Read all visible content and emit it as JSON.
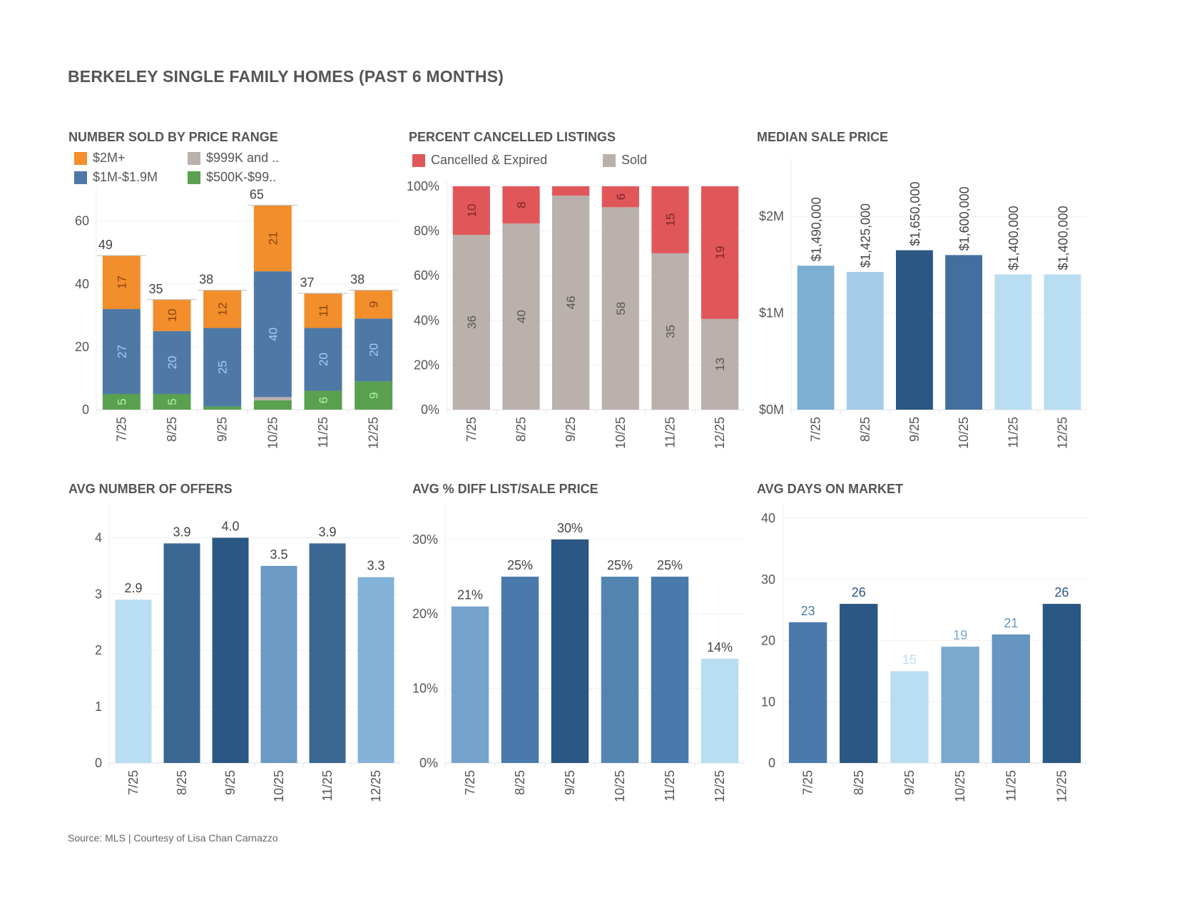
{
  "title": "BERKELEY SINGLE FAMILY HOMES (PAST 6 MONTHS)",
  "footer": "Source: MLS | Courtesy of Lisa Chan Carnazzo",
  "chart_data": [
    {
      "type": "bar",
      "stacked": true,
      "title": "NUMBER SOLD BY PRICE RANGE",
      "categories": [
        "7/25",
        "8/25",
        "9/25",
        "10/25",
        "11/25",
        "12/25"
      ],
      "series": [
        {
          "name": "$500K-$99..",
          "color": "#59A14F",
          "label_color": "#B5F0A8",
          "values": [
            5,
            5,
            1,
            3,
            6,
            9
          ]
        },
        {
          "name": "$999K and ..",
          "color": "#BAB0AC",
          "label_color": "#555555",
          "values": [
            0,
            0,
            0,
            1,
            0,
            0
          ]
        },
        {
          "name": "$1M-$1.9M",
          "color": "#4E79A7",
          "label_color": "#A3CFF5",
          "values": [
            27,
            20,
            25,
            40,
            20,
            20
          ]
        },
        {
          "name": "$2M+",
          "color": "#F28E2B",
          "label_color": "#8A4410",
          "values": [
            17,
            10,
            12,
            21,
            11,
            9
          ]
        }
      ],
      "legend_order": [
        "$2M+",
        "$999K and ..",
        "$1M-$1.9M",
        "$500K-$99.."
      ],
      "totals": [
        49,
        35,
        38,
        65,
        37,
        38
      ],
      "y_ticks": [
        0,
        20,
        40,
        60
      ],
      "y_tick_labels": [
        "0",
        "20",
        "40",
        "60"
      ],
      "ylim": [
        0,
        69
      ],
      "legend": "top-left",
      "grid": true
    },
    {
      "type": "bar",
      "stacked": true,
      "percent": true,
      "title": "PERCENT CANCELLED LISTINGS",
      "categories": [
        "7/25",
        "8/25",
        "9/25",
        "10/25",
        "11/25",
        "12/25"
      ],
      "series": [
        {
          "name": "Sold",
          "color": "#BAB0AC",
          "label_color": "#555555",
          "values": [
            36,
            40,
            46,
            58,
            35,
            13
          ]
        },
        {
          "name": "Cancelled & Expired",
          "color": "#E15759",
          "label_color": "#7A2425",
          "values": [
            10,
            8,
            2,
            6,
            15,
            19
          ]
        }
      ],
      "legend_order": [
        "Cancelled & Expired",
        "Sold"
      ],
      "y_ticks": [
        0,
        20,
        40,
        60,
        80,
        100
      ],
      "y_tick_labels": [
        "0%",
        "20%",
        "40%",
        "60%",
        "80%",
        "100%"
      ],
      "ylim": [
        0,
        100
      ],
      "legend": "top-left",
      "grid": true
    },
    {
      "type": "bar",
      "title": "MEDIAN SALE PRICE",
      "categories": [
        "7/25",
        "8/25",
        "9/25",
        "10/25",
        "11/25",
        "12/25"
      ],
      "values": [
        1490000,
        1425000,
        1650000,
        1600000,
        1400000,
        1400000
      ],
      "value_labels": [
        "$1,490,000",
        "$1,425,000",
        "$1,650,000",
        "$1,600,000",
        "$1,400,000",
        "$1,400,000"
      ],
      "colors": [
        "#7DAED3",
        "#A5CCE8",
        "#2A5783",
        "#436F9F",
        "#B9DDF1",
        "#B9DDF1"
      ],
      "label_rotated": true,
      "y_ticks": [
        0,
        1000000,
        2000000
      ],
      "y_tick_labels": [
        "$0M",
        "$1M",
        "$2M"
      ],
      "ylim": [
        0,
        2600000
      ],
      "grid": true
    },
    {
      "type": "bar",
      "title": "AVG NUMBER OF OFFERS",
      "categories": [
        "7/25",
        "8/25",
        "9/25",
        "10/25",
        "11/25",
        "12/25"
      ],
      "values": [
        2.9,
        3.9,
        4.0,
        3.5,
        3.9,
        3.3
      ],
      "value_labels": [
        "2.9",
        "3.9",
        "4.0",
        "3.5",
        "3.9",
        "3.3"
      ],
      "colors": [
        "#B9DDF1",
        "#3A6893",
        "#2A5783",
        "#6B9AC4",
        "#3A6893",
        "#84B2D8"
      ],
      "y_ticks": [
        0,
        1,
        2,
        3,
        4
      ],
      "y_tick_labels": [
        "0",
        "1",
        "2",
        "3",
        "4"
      ],
      "ylim": [
        0,
        4.5
      ],
      "grid": true
    },
    {
      "type": "bar",
      "title": "AVG % DIFF LIST/SALE PRICE",
      "categories": [
        "7/25",
        "8/25",
        "9/25",
        "10/25",
        "11/25",
        "12/25"
      ],
      "values": [
        21,
        25,
        30,
        25,
        25,
        14
      ],
      "value_labels": [
        "21%",
        "25%",
        "30%",
        "25%",
        "25%",
        "14%"
      ],
      "colors": [
        "#75A3CC",
        "#4A7AAB",
        "#2A5783",
        "#5384B0",
        "#4A7AAB",
        "#B9DDF1"
      ],
      "y_ticks": [
        0,
        10,
        20,
        30
      ],
      "y_tick_labels": [
        "0%",
        "10%",
        "20%",
        "30%"
      ],
      "ylim": [
        0,
        34
      ],
      "grid": true
    },
    {
      "type": "bar",
      "title": "AVG DAYS ON MARKET",
      "categories": [
        "7/25",
        "8/25",
        "9/25",
        "10/25",
        "11/25",
        "12/25"
      ],
      "values": [
        23,
        26,
        15,
        19,
        21,
        26
      ],
      "value_labels": [
        "23",
        "26",
        "15",
        "19",
        "21",
        "26"
      ],
      "colors": [
        "#4A7AAB",
        "#2A5783",
        "#B9DDF1",
        "#79A9CF",
        "#6595C0",
        "#2A5783"
      ],
      "label_colored": true,
      "y_ticks": [
        0,
        10,
        20,
        30,
        40
      ],
      "y_tick_labels": [
        "0",
        "10",
        "20",
        "30",
        "40"
      ],
      "ylim": [
        0,
        41.4
      ],
      "grid": true
    }
  ]
}
